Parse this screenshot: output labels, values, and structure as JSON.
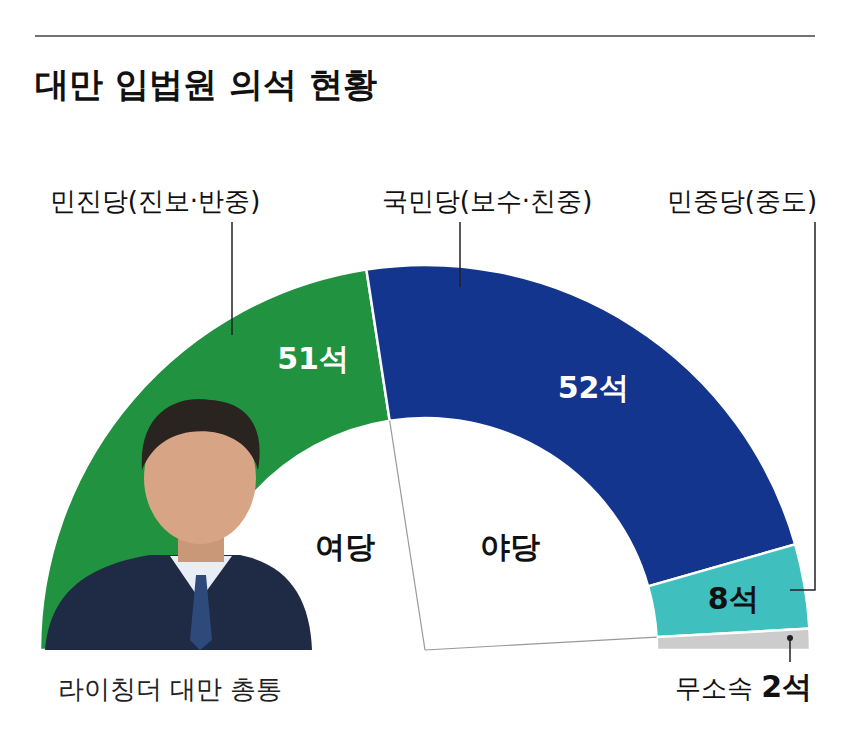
{
  "chart_data": {
    "type": "semi_donut",
    "title": "대만 입법원 의석 현황",
    "categories": [
      "민진당(진보·반중)",
      "국민당(보수·친중)",
      "민중당(중도)",
      "무소속"
    ],
    "values": [
      51,
      52,
      8,
      2
    ],
    "value_labels": [
      "51석",
      "52석",
      "8석",
      "2석"
    ],
    "colors": [
      "#21923f",
      "#13358d",
      "#40bfbf",
      "#cccccc"
    ],
    "data_labels": true,
    "annotations": {
      "ruling": "여당",
      "opposition": "야당",
      "caption": "라이칭더 대만 총통"
    }
  }
}
